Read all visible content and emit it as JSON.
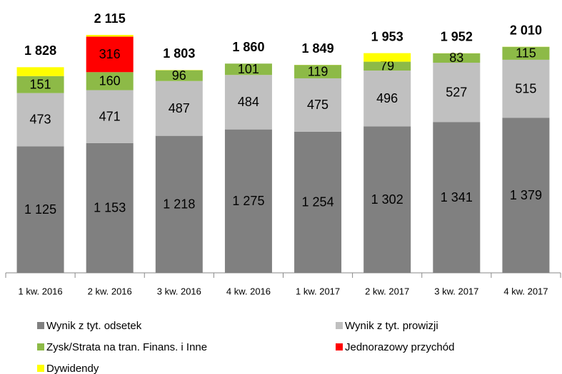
{
  "chart_data": {
    "type": "stacked_bar",
    "categories": [
      "1 kw. 2016",
      "2 kw. 2016",
      "3 kw. 2016",
      "4 kw. 2016",
      "1 kw. 2017",
      "2 kw. 2017",
      "3 kw. 2017",
      "4 kw. 2017"
    ],
    "series": [
      {
        "name": "Wynik z tyt. odsetek",
        "color": "#808080",
        "values": [
          1125,
          1153,
          1218,
          1275,
          1254,
          1302,
          1341,
          1379
        ],
        "value_labels": [
          "1 125",
          "1 153",
          "1 218",
          "1 275",
          "1 254",
          "1 302",
          "1 341",
          "1 379"
        ]
      },
      {
        "name": "Wynik z tyt. prowizji",
        "color": "#c0c0c0",
        "values": [
          473,
          471,
          487,
          484,
          475,
          496,
          527,
          515
        ]
      },
      {
        "name": "Zysk/Strata na tran. Finans. i Inne",
        "color": "#8dba47",
        "values": [
          151,
          160,
          96,
          101,
          119,
          79,
          83,
          115
        ]
      },
      {
        "name": "Jednorazowy przychód",
        "color": "#ff0000",
        "values": [
          0,
          316,
          0,
          0,
          0,
          0,
          0,
          0
        ],
        "value_labels": [
          null,
          "316",
          null,
          null,
          null,
          null,
          null,
          null
        ]
      },
      {
        "name": "Dywidendy",
        "color": "#ffff00",
        "values": [
          79,
          15,
          2,
          0,
          1,
          76,
          1,
          1
        ],
        "value_labels": [
          null,
          null,
          null,
          null,
          null,
          null,
          null,
          null
        ]
      }
    ],
    "totals": [
      1828,
      2115,
      1803,
      1860,
      1849,
      1953,
      1952,
      2010
    ],
    "total_labels": [
      "1 828",
      "2 115",
      "1 803",
      "1 860",
      "1 849",
      "1 953",
      "1 952",
      "2 010"
    ],
    "ylim": [
      0,
      2400
    ]
  }
}
